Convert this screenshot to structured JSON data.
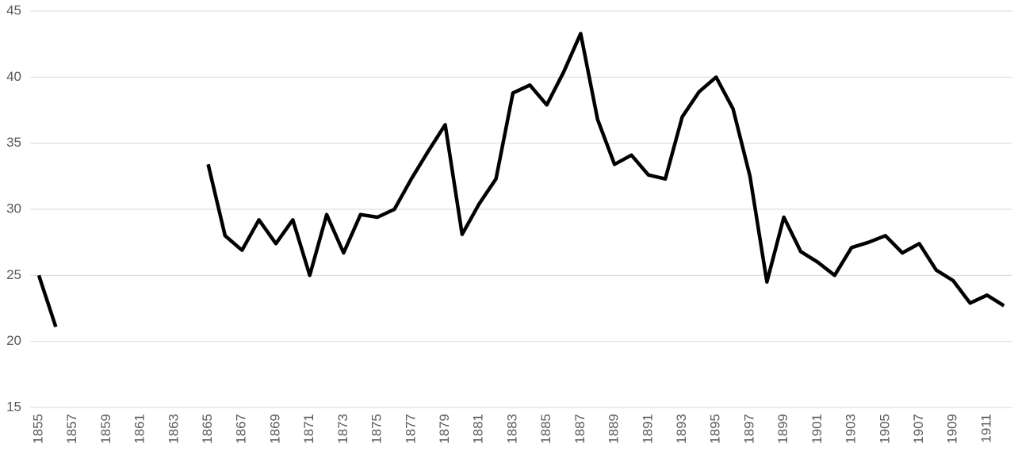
{
  "chart_data": {
    "type": "line",
    "categories": [
      "1855",
      null,
      "1857",
      null,
      "1859",
      null,
      "1861",
      null,
      "1863",
      null,
      "1865",
      null,
      "1867",
      null,
      "1869",
      null,
      "1871",
      null,
      "1873",
      null,
      "1875",
      null,
      "1877",
      null,
      "1879",
      null,
      "1881",
      null,
      "1883",
      null,
      "1885",
      null,
      "1887",
      null,
      "1889",
      null,
      "1891",
      null,
      "1893",
      null,
      "1895",
      null,
      "1897",
      null,
      "1899",
      null,
      "1901",
      null,
      "1903",
      null,
      "1905",
      null,
      "1907",
      null,
      "1909",
      null,
      "1911",
      null
    ],
    "series": [
      {
        "color": "#000000",
        "values": [
          25.0,
          21.1,
          null,
          null,
          null,
          null,
          null,
          null,
          null,
          null,
          33.4,
          28.0,
          26.9,
          29.2,
          27.4,
          29.2,
          25.0,
          29.6,
          26.7,
          29.6,
          29.4,
          30.0,
          32.3,
          34.4,
          36.4,
          28.1,
          30.4,
          32.3,
          38.8,
          39.4,
          37.9,
          40.4,
          43.3,
          36.8,
          33.4,
          34.1,
          32.6,
          32.3,
          37.0,
          38.9,
          40.0,
          37.6,
          32.5,
          24.5,
          29.4,
          26.8,
          26.0,
          25.0,
          27.1,
          27.5,
          28.0,
          26.7,
          27.4,
          25.4,
          24.6,
          22.9,
          23.5,
          22.7
        ]
      }
    ],
    "ylim": [
      15,
      45
    ],
    "yticks": [
      15,
      20,
      25,
      30,
      35,
      40,
      45
    ],
    "grid": true
  }
}
